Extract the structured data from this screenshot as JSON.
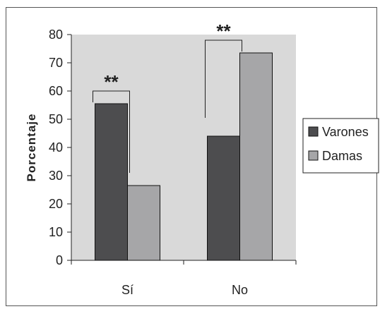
{
  "chart_data": {
    "type": "bar",
    "categories": [
      "Sí",
      "No"
    ],
    "series": [
      {
        "name": "Varones",
        "values": [
          55.5,
          44
        ],
        "color": "#4d4d4f"
      },
      {
        "name": "Damas",
        "values": [
          26.5,
          73.5
        ],
        "color": "#a6a6a8"
      }
    ],
    "ylabel": "Porcentaje",
    "xlabel": "",
    "ylim": [
      0,
      80
    ],
    "yticks": [
      0,
      10,
      20,
      30,
      40,
      50,
      60,
      70,
      80
    ],
    "significance_labels": [
      "**",
      "**"
    ],
    "legend_position": "right",
    "plot_background": "#d9d9d9",
    "grid": false
  }
}
